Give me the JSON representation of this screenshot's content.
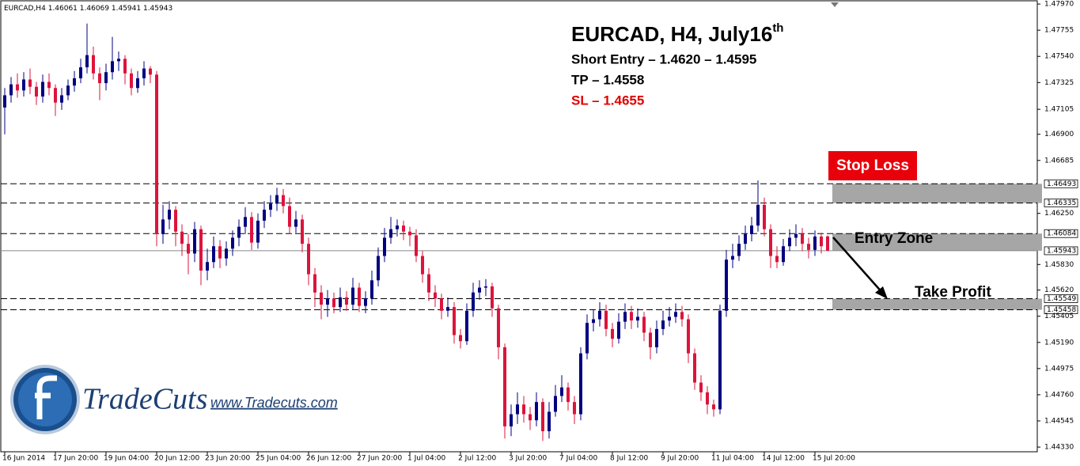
{
  "chart_data": {
    "type": "candlestick",
    "symbol": "EURCAD,H4",
    "title": "EURCAD, H4, July16",
    "title_sup": "th",
    "notes": [
      "Short Entry – 1.4620 – 1.4595",
      "TP – 1.4558",
      "SL – 1.4655"
    ],
    "zone_labels": [
      "Stop Loss",
      "Entry Zone",
      "Take Profit"
    ],
    "bull_color": "#000080",
    "bear_color": "#dc143c",
    "ylim": [
      1.44298,
      1.48003
    ],
    "yticks": [
      {
        "value": 1.4797,
        "label": "1.47970"
      },
      {
        "value": 1.47755,
        "label": "1.47755"
      },
      {
        "value": 1.4754,
        "label": "1.47540"
      },
      {
        "value": 1.47325,
        "label": "1.47325"
      },
      {
        "value": 1.47105,
        "label": "1.47105"
      },
      {
        "value": 1.469,
        "label": "1.46900"
      },
      {
        "value": 1.46685,
        "label": "1.46685"
      },
      {
        "value": 1.4625,
        "label": "1.46250"
      },
      {
        "value": 1.4583,
        "label": "1.45830"
      },
      {
        "value": 1.4562,
        "label": "1.45620"
      },
      {
        "value": 1.45405,
        "label": "1.45405"
      },
      {
        "value": 1.4519,
        "label": "1.45190"
      },
      {
        "value": 1.44975,
        "label": "1.44975"
      },
      {
        "value": 1.4476,
        "label": "1.44760"
      },
      {
        "value": 1.44545,
        "label": "1.44545"
      },
      {
        "value": 1.4433,
        "label": "1.44330"
      }
    ],
    "levels": [
      1.46493,
      1.46335,
      1.46084,
      1.45943,
      1.45549,
      1.45458
    ],
    "categories": [
      "16 Jun 2014",
      null,
      null,
      null,
      null,
      null,
      null,
      null,
      "17 Jun 20:00",
      null,
      null,
      null,
      null,
      null,
      null,
      null,
      "19 Jun 04:00",
      null,
      null,
      null,
      null,
      null,
      null,
      null,
      "20 Jun 12:00",
      null,
      null,
      null,
      null,
      null,
      null,
      null,
      "23 Jun 20:00",
      null,
      null,
      null,
      null,
      null,
      null,
      null,
      "25 Jun 04:00",
      null,
      null,
      null,
      null,
      null,
      null,
      null,
      "26 Jun 12:00",
      null,
      null,
      null,
      null,
      null,
      null,
      null,
      "27 Jun 20:00",
      null,
      null,
      null,
      null,
      null,
      null,
      null,
      "1 Jul 04:00",
      null,
      null,
      null,
      null,
      null,
      null,
      null,
      "2 Jul 12:00",
      null,
      null,
      null,
      null,
      null,
      null,
      null,
      "3 Jul 20:00",
      null,
      null,
      null,
      null,
      null,
      null,
      null,
      "7 Jul 04:00",
      null,
      null,
      null,
      null,
      null,
      null,
      null,
      "8 Jul 12:00",
      null,
      null,
      null,
      null,
      null,
      null,
      null,
      "9 Jul 20:00",
      null,
      null,
      null,
      null,
      null,
      null,
      null,
      "11 Jul 04:00",
      null,
      null,
      null,
      null,
      null,
      null,
      null,
      "14 Jul 12:00",
      null,
      null,
      null,
      null,
      null,
      null,
      null,
      "15 Jul 20:00",
      null,
      null
    ],
    "ohlc": [
      [
        1.4712,
        1.4728,
        1.469,
        1.4722
      ],
      [
        1.4722,
        1.4737,
        1.4716,
        1.4731
      ],
      [
        1.4731,
        1.474,
        1.472,
        1.4726
      ],
      [
        1.4726,
        1.4741,
        1.4721,
        1.4735
      ],
      [
        1.4735,
        1.4744,
        1.4723,
        1.4729
      ],
      [
        1.4729,
        1.4733,
        1.4714,
        1.4721
      ],
      [
        1.4721,
        1.4739,
        1.4716,
        1.4733
      ],
      [
        1.4733,
        1.474,
        1.4722,
        1.4728
      ],
      [
        1.4728,
        1.4731,
        1.4705,
        1.4716
      ],
      [
        1.4716,
        1.4728,
        1.471,
        1.4722
      ],
      [
        1.4722,
        1.4735,
        1.4718,
        1.473
      ],
      [
        1.473,
        1.4742,
        1.4725,
        1.4736
      ],
      [
        1.4736,
        1.4752,
        1.4732,
        1.4745
      ],
      [
        1.4745,
        1.4781,
        1.474,
        1.4755
      ],
      [
        1.4755,
        1.4762,
        1.4735,
        1.474
      ],
      [
        1.474,
        1.4745,
        1.4718,
        1.4732
      ],
      [
        1.4732,
        1.4748,
        1.4726,
        1.4741
      ],
      [
        1.4741,
        1.477,
        1.4735,
        1.475
      ],
      [
        1.475,
        1.4758,
        1.4742,
        1.4752
      ],
      [
        1.4752,
        1.4755,
        1.4731,
        1.474
      ],
      [
        1.474,
        1.4744,
        1.4722,
        1.4728
      ],
      [
        1.4728,
        1.4742,
        1.4724,
        1.4736
      ],
      [
        1.4736,
        1.475,
        1.473,
        1.4744
      ],
      [
        1.4744,
        1.4746,
        1.4732,
        1.4739
      ],
      [
        1.4739,
        1.4742,
        1.4598,
        1.4608
      ],
      [
        1.4608,
        1.4632,
        1.46,
        1.462
      ],
      [
        1.462,
        1.4635,
        1.4612,
        1.4628
      ],
      [
        1.4628,
        1.4631,
        1.4598,
        1.461
      ],
      [
        1.461,
        1.4616,
        1.459,
        1.46
      ],
      [
        1.46,
        1.4608,
        1.4575,
        1.4592
      ],
      [
        1.4592,
        1.4618,
        1.4585,
        1.4612
      ],
      [
        1.4612,
        1.4615,
        1.4566,
        1.4578
      ],
      [
        1.4578,
        1.4596,
        1.457,
        1.4585
      ],
      [
        1.4585,
        1.4606,
        1.458,
        1.4598
      ],
      [
        1.4598,
        1.4603,
        1.458,
        1.4588
      ],
      [
        1.4588,
        1.4602,
        1.4582,
        1.4596
      ],
      [
        1.4596,
        1.4611,
        1.459,
        1.4605
      ],
      [
        1.4605,
        1.462,
        1.4598,
        1.4614
      ],
      [
        1.4614,
        1.463,
        1.4608,
        1.4622
      ],
      [
        1.4622,
        1.4626,
        1.4595,
        1.4601
      ],
      [
        1.4601,
        1.4625,
        1.4596,
        1.4619
      ],
      [
        1.4619,
        1.4635,
        1.4613,
        1.4628
      ],
      [
        1.4628,
        1.464,
        1.4622,
        1.4633
      ],
      [
        1.4633,
        1.4646,
        1.4627,
        1.464
      ],
      [
        1.464,
        1.4645,
        1.4625,
        1.4631
      ],
      [
        1.4631,
        1.4638,
        1.4608,
        1.4614
      ],
      [
        1.4614,
        1.4627,
        1.4609,
        1.462
      ],
      [
        1.462,
        1.4624,
        1.4593,
        1.46
      ],
      [
        1.46,
        1.4605,
        1.4566,
        1.4575
      ],
      [
        1.4575,
        1.458,
        1.4548,
        1.456
      ],
      [
        1.456,
        1.4566,
        1.4538,
        1.455
      ],
      [
        1.455,
        1.4562,
        1.454,
        1.4555
      ],
      [
        1.4555,
        1.456,
        1.4543,
        1.4548
      ],
      [
        1.4548,
        1.4564,
        1.4544,
        1.4556
      ],
      [
        1.4556,
        1.4561,
        1.4545,
        1.455
      ],
      [
        1.455,
        1.4572,
        1.4546,
        1.4564
      ],
      [
        1.4564,
        1.4568,
        1.4544,
        1.4549
      ],
      [
        1.4549,
        1.4561,
        1.4543,
        1.4555
      ],
      [
        1.4555,
        1.4578,
        1.455,
        1.457
      ],
      [
        1.457,
        1.4597,
        1.4565,
        1.459
      ],
      [
        1.459,
        1.4613,
        1.4585,
        1.4605
      ],
      [
        1.4605,
        1.4622,
        1.46,
        1.4612
      ],
      [
        1.4612,
        1.462,
        1.4606,
        1.4615
      ],
      [
        1.4615,
        1.4619,
        1.4603,
        1.461
      ],
      [
        1.461,
        1.4614,
        1.4598,
        1.4607
      ],
      [
        1.4607,
        1.4612,
        1.4585,
        1.459
      ],
      [
        1.459,
        1.4594,
        1.4568,
        1.4575
      ],
      [
        1.4575,
        1.458,
        1.4553,
        1.456
      ],
      [
        1.456,
        1.4566,
        1.4548,
        1.4555
      ],
      [
        1.4555,
        1.4559,
        1.4538,
        1.4545
      ],
      [
        1.4545,
        1.4556,
        1.454,
        1.4548
      ],
      [
        1.4548,
        1.4552,
        1.4518,
        1.4525
      ],
      [
        1.4525,
        1.453,
        1.4514,
        1.452
      ],
      [
        1.452,
        1.4551,
        1.4517,
        1.4545
      ],
      [
        1.4545,
        1.4568,
        1.454,
        1.456
      ],
      [
        1.456,
        1.457,
        1.4554,
        1.4564
      ],
      [
        1.4564,
        1.4571,
        1.4557,
        1.4565
      ],
      [
        1.4565,
        1.4568,
        1.454,
        1.4547
      ],
      [
        1.4547,
        1.455,
        1.4505,
        1.4515
      ],
      [
        1.4515,
        1.4518,
        1.444,
        1.445
      ],
      [
        1.445,
        1.4468,
        1.4442,
        1.446
      ],
      [
        1.446,
        1.4478,
        1.4452,
        1.4468
      ],
      [
        1.4468,
        1.4475,
        1.4453,
        1.446
      ],
      [
        1.446,
        1.4466,
        1.4447,
        1.4455
      ],
      [
        1.4455,
        1.4478,
        1.445,
        1.447
      ],
      [
        1.447,
        1.4473,
        1.4438,
        1.4446
      ],
      [
        1.4446,
        1.447,
        1.444,
        1.4462
      ],
      [
        1.4462,
        1.4484,
        1.4458,
        1.4475
      ],
      [
        1.4475,
        1.4492,
        1.447,
        1.4482
      ],
      [
        1.4482,
        1.4486,
        1.4463,
        1.447
      ],
      [
        1.447,
        1.4475,
        1.4452,
        1.446
      ],
      [
        1.446,
        1.4515,
        1.4455,
        1.451
      ],
      [
        1.451,
        1.4542,
        1.4505,
        1.4535
      ],
      [
        1.4535,
        1.4546,
        1.4528,
        1.4538
      ],
      [
        1.4538,
        1.4552,
        1.4532,
        1.4545
      ],
      [
        1.4545,
        1.455,
        1.4524,
        1.453
      ],
      [
        1.453,
        1.4535,
        1.4515,
        1.4522
      ],
      [
        1.4522,
        1.4543,
        1.4518,
        1.4536
      ],
      [
        1.4536,
        1.4551,
        1.453,
        1.4544
      ],
      [
        1.4544,
        1.4549,
        1.453,
        1.4537
      ],
      [
        1.4537,
        1.4547,
        1.4531,
        1.454
      ],
      [
        1.454,
        1.4544,
        1.452,
        1.4527
      ],
      [
        1.4527,
        1.4531,
        1.4505,
        1.4515
      ],
      [
        1.4515,
        1.4537,
        1.451,
        1.453
      ],
      [
        1.453,
        1.4545,
        1.4525,
        1.4537
      ],
      [
        1.4537,
        1.4548,
        1.4532,
        1.454
      ],
      [
        1.454,
        1.4551,
        1.4535,
        1.4544
      ],
      [
        1.4544,
        1.4549,
        1.4532,
        1.4538
      ],
      [
        1.4538,
        1.4542,
        1.4502,
        1.451
      ],
      [
        1.451,
        1.4514,
        1.448,
        1.4486
      ],
      [
        1.4486,
        1.4492,
        1.4471,
        1.4478
      ],
      [
        1.4478,
        1.4483,
        1.446,
        1.4468
      ],
      [
        1.4468,
        1.4472,
        1.4458,
        1.4464
      ],
      [
        1.4464,
        1.455,
        1.446,
        1.4545
      ],
      [
        1.4545,
        1.4595,
        1.454,
        1.4587
      ],
      [
        1.4587,
        1.46,
        1.458,
        1.459
      ],
      [
        1.459,
        1.4607,
        1.4586,
        1.46
      ],
      [
        1.46,
        1.4615,
        1.4595,
        1.4608
      ],
      [
        1.4608,
        1.4622,
        1.4602,
        1.4615
      ],
      [
        1.4615,
        1.4652,
        1.461,
        1.4632
      ],
      [
        1.4632,
        1.4638,
        1.4606,
        1.4612
      ],
      [
        1.4612,
        1.4616,
        1.458,
        1.459
      ],
      [
        1.459,
        1.4598,
        1.458,
        1.4585
      ],
      [
        1.4585,
        1.4604,
        1.4582,
        1.4598
      ],
      [
        1.4598,
        1.4612,
        1.4594,
        1.4605
      ],
      [
        1.4605,
        1.4616,
        1.4598,
        1.4608
      ],
      [
        1.4608,
        1.4613,
        1.4594,
        1.46
      ],
      [
        1.46,
        1.4605,
        1.4588,
        1.4595
      ],
      [
        1.4595,
        1.4611,
        1.459,
        1.4606
      ],
      [
        1.4606,
        1.4609,
        1.4592,
        1.4598
      ],
      [
        1.46061,
        1.46069,
        1.45941,
        1.45943
      ]
    ]
  },
  "brand": {
    "name": "TradeCuts",
    "url": "www.Tradecuts.com"
  }
}
